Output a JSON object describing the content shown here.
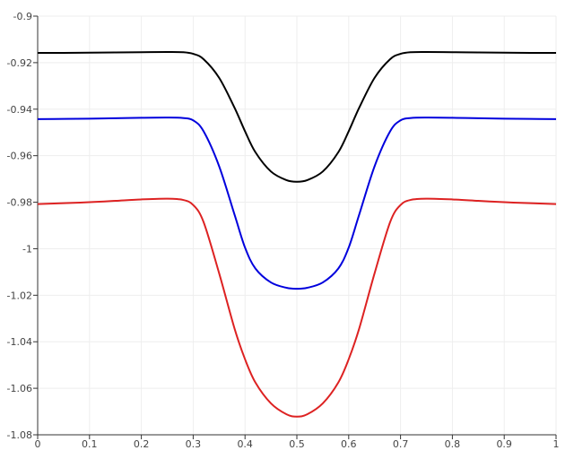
{
  "chart_data": {
    "type": "line",
    "title": "",
    "xlabel": "",
    "ylabel": "",
    "xlim": [
      0,
      1
    ],
    "ylim": [
      -1.08,
      -0.9
    ],
    "grid": true,
    "legend": "none",
    "x_ticks": [
      "0",
      "0.1",
      "0.2",
      "0.3",
      "0.4",
      "0.5",
      "0.6",
      "0.7",
      "0.8",
      "0.9",
      "1"
    ],
    "y_ticks": [
      "-0.9",
      "-0.92",
      "-0.94",
      "-0.96",
      "-0.98",
      "-1",
      "-1.02",
      "-1.04",
      "-1.06",
      "-1.08"
    ],
    "x": [
      0,
      0.05,
      0.1,
      0.15,
      0.2,
      0.25,
      0.28,
      0.3,
      0.32,
      0.35,
      0.38,
      0.4,
      0.42,
      0.45,
      0.48,
      0.5,
      0.52,
      0.55,
      0.58,
      0.6,
      0.62,
      0.65,
      0.68,
      0.7,
      0.72,
      0.75,
      0.8,
      0.85,
      0.9,
      0.95,
      1
    ],
    "series": [
      {
        "color": "#000000",
        "values": [
          -0.9158,
          -0.9158,
          -0.9157,
          -0.9156,
          -0.9155,
          -0.9154,
          -0.9155,
          -0.9162,
          -0.9185,
          -0.9265,
          -0.9395,
          -0.9495,
          -0.9585,
          -0.9668,
          -0.9705,
          -0.9712,
          -0.9705,
          -0.9668,
          -0.9585,
          -0.9495,
          -0.9395,
          -0.9265,
          -0.9185,
          -0.9162,
          -0.9155,
          -0.9154,
          -0.9155,
          -0.9156,
          -0.9157,
          -0.9158,
          -0.9158
        ]
      },
      {
        "color": "#0000dd",
        "values": [
          -0.9443,
          -0.9442,
          -0.9441,
          -0.9439,
          -0.9437,
          -0.9436,
          -0.9438,
          -0.9448,
          -0.9495,
          -0.9645,
          -0.9855,
          -0.9995,
          -1.0085,
          -1.0145,
          -1.0168,
          -1.0172,
          -1.0168,
          -1.0145,
          -1.0085,
          -0.9995,
          -0.9855,
          -0.9645,
          -0.9495,
          -0.9448,
          -0.9438,
          -0.9436,
          -0.9437,
          -0.9439,
          -0.9441,
          -0.9442,
          -0.9443
        ]
      },
      {
        "color": "#dd2222",
        "values": [
          -0.9808,
          -0.9804,
          -0.98,
          -0.9794,
          -0.9788,
          -0.9785,
          -0.979,
          -0.9812,
          -0.9885,
          -1.0105,
          -1.0345,
          -1.0475,
          -1.0575,
          -1.0665,
          -1.0712,
          -1.0722,
          -1.0712,
          -1.0665,
          -1.0575,
          -1.0475,
          -1.0345,
          -1.0105,
          -0.9885,
          -0.9812,
          -0.979,
          -0.9785,
          -0.9788,
          -0.9794,
          -0.98,
          -0.9804,
          -0.9808
        ]
      }
    ]
  }
}
